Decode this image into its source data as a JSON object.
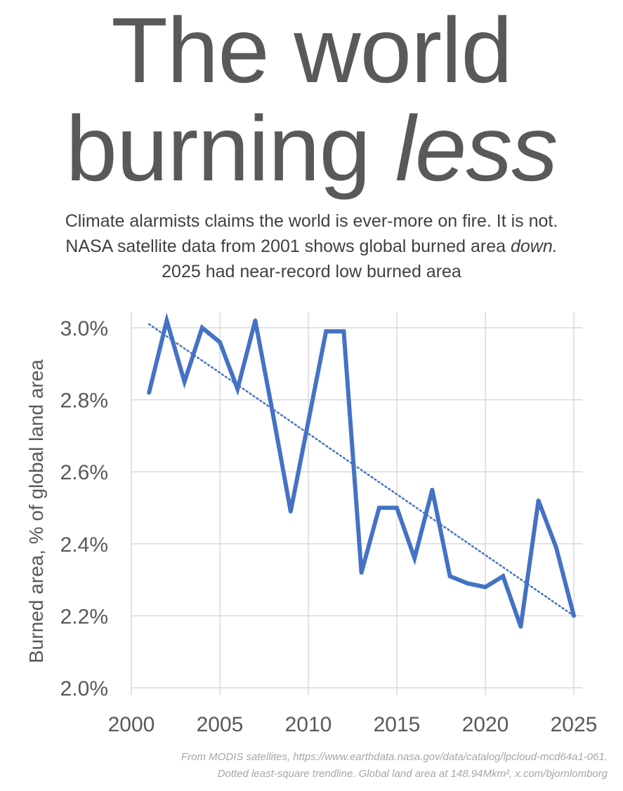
{
  "title": {
    "line1": "The world",
    "line2_plain": "burning ",
    "line2_italic": "less"
  },
  "subtitle": {
    "line1": "Climate alarmists claims the world is ever-more on fire. It is not.",
    "line2_plain": "NASA satellite data from 2001 shows global burned area ",
    "line2_italic": "down.",
    "line3": "2025 had near-record low burned area"
  },
  "source": {
    "line1": "From MODIS satellites, https://www.earthdata.nasa.gov/data/catalog/lpcloud-mcd64a1-061.",
    "line2": "Dotted least-square trendline. Global land area at 148.94Mkm², x.com/bjornlomborg"
  },
  "colors": {
    "series": "#4472c4",
    "grid": "#d9d9d9",
    "text": "#595959"
  },
  "chart_data": {
    "type": "line",
    "ylabel": "Burned area, % of global land area",
    "xlim": [
      2000,
      2025
    ],
    "ylim": [
      2.0,
      3.0
    ],
    "x_ticks": [
      "2000",
      "2005",
      "2010",
      "2015",
      "2020",
      "2025"
    ],
    "y_ticks": [
      "2.0%",
      "2.2%",
      "2.4%",
      "2.6%",
      "2.8%",
      "3.0%"
    ],
    "grid": true,
    "series": [
      {
        "x": [
          2001,
          2002,
          2003,
          2004,
          2005,
          2006,
          2007,
          2008,
          2009,
          2010,
          2011,
          2012,
          2013,
          2014,
          2015,
          2016,
          2017,
          2018,
          2019,
          2020,
          2021,
          2022,
          2023,
          2024,
          2025
        ],
        "values": [
          2.82,
          3.02,
          2.85,
          3.0,
          2.96,
          2.83,
          3.02,
          2.76,
          2.49,
          2.74,
          2.99,
          2.99,
          2.32,
          2.5,
          2.5,
          2.36,
          2.55,
          2.31,
          2.29,
          2.28,
          2.31,
          2.17,
          2.52,
          2.39,
          2.2
        ]
      }
    ],
    "trendline": {
      "style": "dotted",
      "x": [
        2001,
        2025
      ],
      "values": [
        3.01,
        2.2
      ]
    }
  }
}
